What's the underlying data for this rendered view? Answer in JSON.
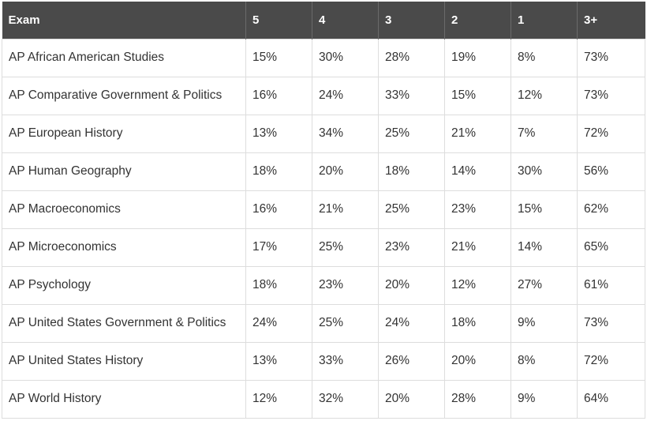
{
  "table": {
    "headers": [
      "Exam",
      "5",
      "4",
      "3",
      "2",
      "1",
      "3+"
    ],
    "rows": [
      [
        "AP African American Studies",
        "15%",
        "30%",
        "28%",
        "19%",
        "8%",
        "73%"
      ],
      [
        "AP Comparative Government & Politics",
        "16%",
        "24%",
        "33%",
        "15%",
        "12%",
        "73%"
      ],
      [
        "AP European History",
        "13%",
        "34%",
        "25%",
        "21%",
        "7%",
        "72%"
      ],
      [
        "AP Human Geography",
        "18%",
        "20%",
        "18%",
        "14%",
        "30%",
        "56%"
      ],
      [
        "AP Macroeconomics",
        "16%",
        "21%",
        "25%",
        "23%",
        "15%",
        "62%"
      ],
      [
        "AP Microeconomics",
        "17%",
        "25%",
        "23%",
        "21%",
        "14%",
        "65%"
      ],
      [
        "AP Psychology",
        "18%",
        "23%",
        "20%",
        "12%",
        "27%",
        "61%"
      ],
      [
        "AP United States Government & Politics",
        "24%",
        "25%",
        "24%",
        "18%",
        "9%",
        "73%"
      ],
      [
        "AP United States History",
        "13%",
        "33%",
        "26%",
        "20%",
        "8%",
        "72%"
      ],
      [
        "AP World History",
        "12%",
        "32%",
        "20%",
        "28%",
        "9%",
        "64%"
      ]
    ]
  },
  "colors": {
    "header_bg": "#4a4a4a",
    "header_text": "#ffffff",
    "cell_text": "#333333",
    "border": "#dddddd"
  }
}
